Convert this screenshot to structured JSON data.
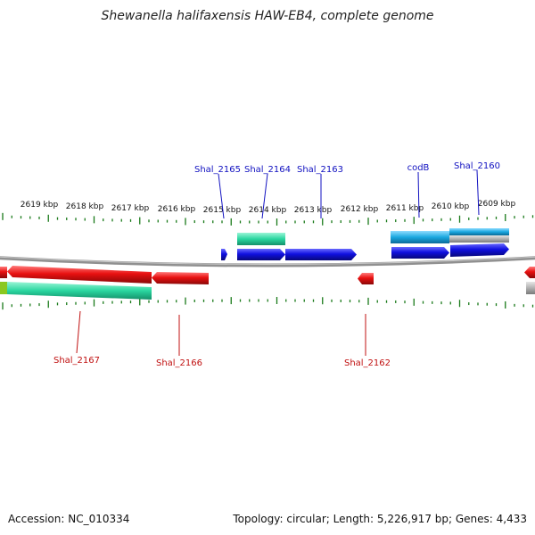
{
  "title": "Shewanella halifaxensis HAW-EB4, complete genome",
  "footer": {
    "accession": "Accession: NC_010334",
    "topology": "Topology: circular; Length: 5,226,917 bp; Genes: 4,433"
  },
  "scale_labels": [
    "2619 kbp",
    "2618 kbp",
    "2617 kbp",
    "2616 kbp",
    "2615 kbp",
    "2614 kbp",
    "2613 kbp",
    "2612 kbp",
    "2611 kbp",
    "2610 kbp",
    "2609 kbp"
  ],
  "genes_top": [
    {
      "name": "Shal_2165",
      "color": "#1010c0"
    },
    {
      "name": "Shal_2164",
      "color": "#1010c0"
    },
    {
      "name": "Shal_2163",
      "color": "#1010c0"
    },
    {
      "name": "codB",
      "color": "#1010c0"
    },
    {
      "name": "Shal_2160",
      "color": "#1010c0"
    }
  ],
  "genes_bottom": [
    {
      "name": "Shal_2167",
      "color": "#c01010"
    },
    {
      "name": "Shal_2166",
      "color": "#c01010"
    },
    {
      "name": "Shal_2162",
      "color": "#c01010"
    }
  ],
  "colors": {
    "forward_cds": "#1010e0",
    "reverse_cds": "#e81010",
    "rna_feature": "#2ad6a0",
    "cyan_feature": "#1aa8e0",
    "grey_feature": "#b0b0b0",
    "backbone": "#808080",
    "ticks": "#1a7a1a"
  }
}
